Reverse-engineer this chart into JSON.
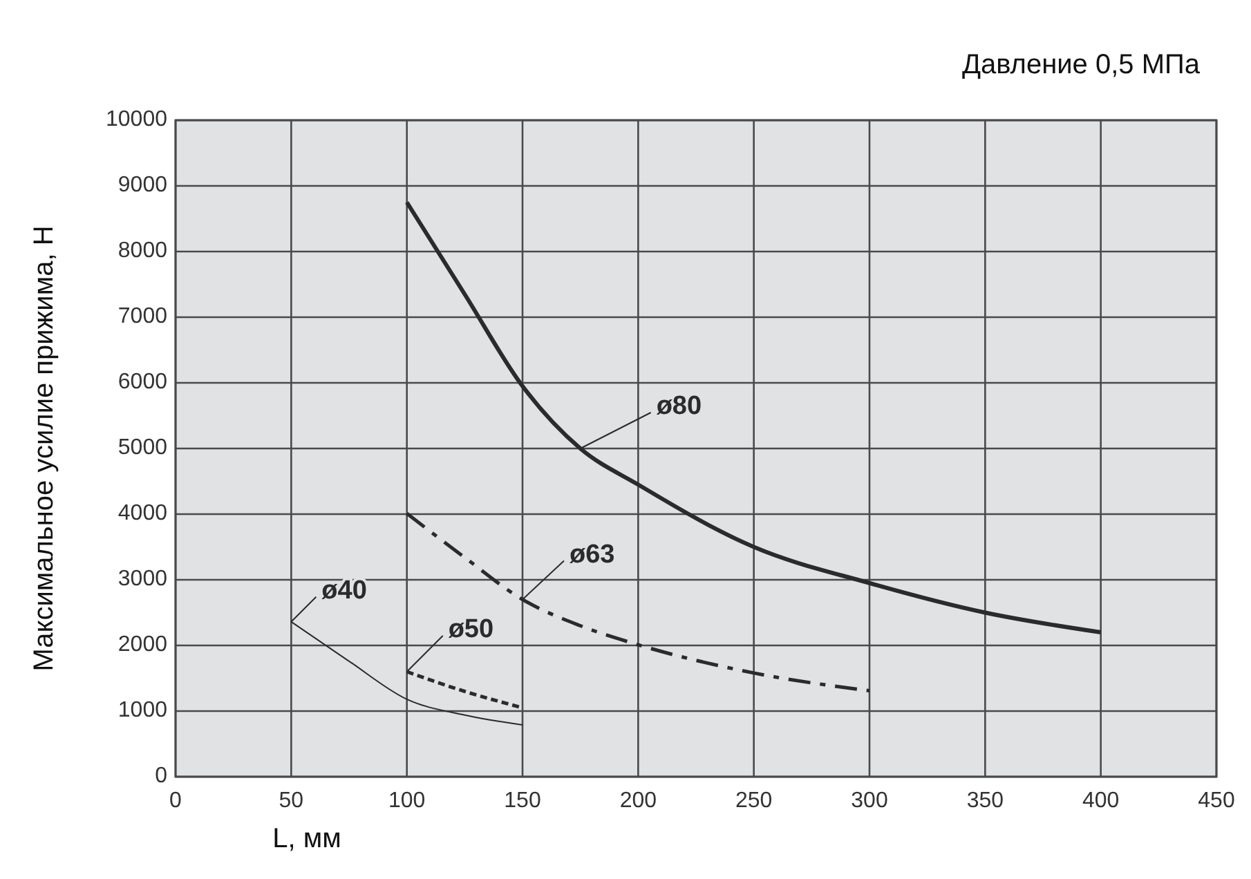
{
  "chart_data": {
    "type": "line",
    "title": "Давление 0,5 МПа",
    "xlabel": "L, мм",
    "ylabel": "Максимальное усилие прижима, Н",
    "xlim": [
      0,
      450
    ],
    "xticks": [
      0,
      50,
      100,
      150,
      200,
      250,
      300,
      350,
      400,
      450
    ],
    "ylim": [
      0,
      10000
    ],
    "yticks": [
      0,
      1000,
      2000,
      3000,
      4000,
      5000,
      6000,
      7000,
      8000,
      9000,
      10000
    ],
    "grid": true,
    "legend": false,
    "marker": "none",
    "series": [
      {
        "name": "ø80",
        "color": "#2b2b2b",
        "line_style": "solid",
        "x": [
          100,
          125,
          150,
          175,
          200,
          250,
          300,
          350,
          400
        ],
        "values": [
          8750,
          7350,
          5950,
          5000,
          4450,
          3500,
          2950,
          2500,
          2200
        ]
      },
      {
        "name": "ø63",
        "color": "#2b2b2b",
        "line_style": "dashed",
        "x": [
          100,
          125,
          150,
          175,
          200,
          250,
          300
        ],
        "values": [
          4010,
          3340,
          2700,
          2300,
          2010,
          1580,
          1310
        ]
      },
      {
        "name": "ø50",
        "color": "#2b2b2b",
        "line_style": "dotted",
        "x": [
          100,
          125,
          150
        ],
        "values": [
          1600,
          1300,
          1050
        ]
      },
      {
        "name": "ø40",
        "color": "#2b2b2b",
        "line_style": "solid",
        "x": [
          50,
          75,
          100,
          125,
          150
        ],
        "values": [
          2360,
          1760,
          1180,
          940,
          790
        ]
      }
    ]
  }
}
